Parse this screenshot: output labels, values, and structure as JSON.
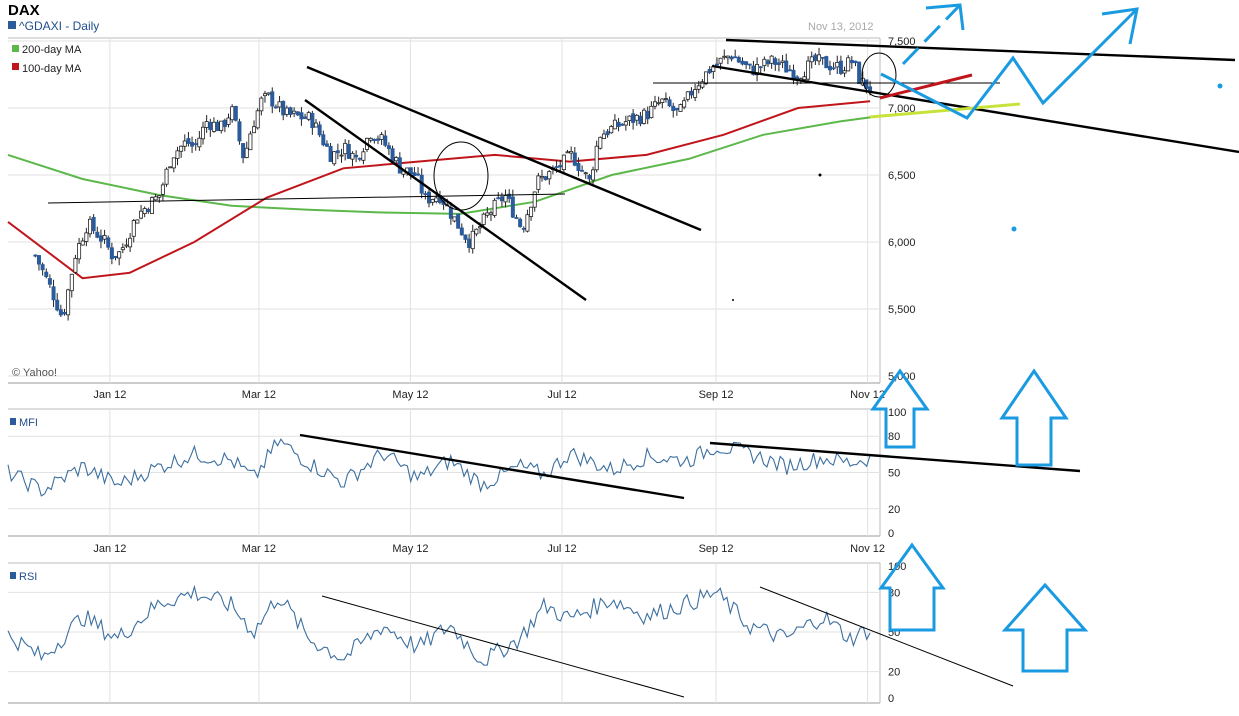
{
  "header": {
    "title": "DAX",
    "subtitle": "^GDAXI - Daily",
    "date": "Nov 13, 2012",
    "credit": "© Yahoo!"
  },
  "legend": [
    {
      "label": "200-day MA",
      "color": "#5cb84a"
    },
    {
      "label": "100-day MA",
      "color": "#c0161b"
    }
  ],
  "colors": {
    "candle_up": "#ffffff",
    "candle_down": "#2b5b9a",
    "ma200": "#5cb84a",
    "ma100": "#c0161b",
    "grid": "#e2e2e2",
    "annotation_black": "#000000",
    "annotation_blue": "#1a9ae0",
    "annotation_yellow": "#c9e23a",
    "osc_line": "#3c6f9f"
  },
  "chart_data": [
    {
      "type": "candlestick",
      "title": "^GDAXI - Daily",
      "xlabel": "",
      "ylabel": "",
      "x_ticks": [
        "Jan 12",
        "Mar 12",
        "May 12",
        "Jul 12",
        "Sep 12",
        "Nov 12"
      ],
      "y_ticks": [
        "5,000",
        "5,500",
        "6,000",
        "6,500",
        "7,000",
        "7,500"
      ],
      "ylim": [
        5000,
        7500
      ],
      "grid": true,
      "legend_position": "top-left",
      "price_path": [
        [
          "Dec 12",
          5900
        ],
        [
          "Dec 19",
          5620
        ],
        [
          "Dec 23",
          5430
        ],
        [
          "Dec 28",
          5900
        ],
        [
          "Jan 03",
          6140
        ],
        [
          "Jan 10",
          6000
        ],
        [
          "Jan 13",
          5900
        ],
        [
          "Jan 16",
          5920
        ],
        [
          "Jan 18",
          5990
        ],
        [
          "Jan 23",
          6200
        ],
        [
          "Feb 01",
          6350
        ],
        [
          "Feb 06",
          6650
        ],
        [
          "Feb 12",
          6750
        ],
        [
          "Feb 15",
          6700
        ],
        [
          "Feb 20",
          6900
        ],
        [
          "Feb 26",
          6850
        ],
        [
          "Mar 01",
          6990
        ],
        [
          "Mar 06",
          6620
        ],
        [
          "Mar 09",
          6850
        ],
        [
          "Mar 13",
          7050
        ],
        [
          "Mar 16",
          7080
        ],
        [
          "Mar 23",
          6950
        ],
        [
          "Apr 02",
          6920
        ],
        [
          "Apr 10",
          6650
        ],
        [
          "Apr 16",
          6700
        ],
        [
          "Apr 20",
          6620
        ],
        [
          "Apr 26",
          6820
        ],
        [
          "May 01",
          6750
        ],
        [
          "May 08",
          6550
        ],
        [
          "May 14",
          6500
        ],
        [
          "May 18",
          6320
        ],
        [
          "May 24",
          6350
        ],
        [
          "Jun 01",
          6100
        ],
        [
          "Jun 05",
          6000
        ],
        [
          "Jun 12",
          6200
        ],
        [
          "Jun 19",
          6350
        ],
        [
          "Jun 26",
          6100
        ],
        [
          "Jul 02",
          6450
        ],
        [
          "Jul 10",
          6550
        ],
        [
          "Jul 16",
          6650
        ],
        [
          "Jul 23",
          6450
        ],
        [
          "Jul 27",
          6800
        ],
        [
          "Aug 07",
          6900
        ],
        [
          "Aug 15",
          6950
        ],
        [
          "Aug 21",
          7050
        ],
        [
          "Aug 28",
          6950
        ],
        [
          "Sep 03",
          7150
        ],
        [
          "Sep 10",
          7300
        ],
        [
          "Sep 18",
          7400
        ],
        [
          "Sep 26",
          7280
        ],
        [
          "Oct 05",
          7350
        ],
        [
          "Oct 15",
          7250
        ],
        [
          "Oct 22",
          7350
        ],
        [
          "Nov 01",
          7300
        ],
        [
          "Nov 06",
          7350
        ],
        [
          "Nov 09",
          7200
        ],
        [
          "Nov 13",
          7150
        ]
      ],
      "series": [
        {
          "name": "200-day MA",
          "values": [
            [
              "Dec 01",
              6650
            ],
            [
              "Jan 01",
              6470
            ],
            [
              "Feb 01",
              6350
            ],
            [
              "Mar 01",
              6270
            ],
            [
              "Apr 01",
              6240
            ],
            [
              "May 01",
              6220
            ],
            [
              "Jun 01",
              6210
            ],
            [
              "Jul 01",
              6300
            ],
            [
              "Aug 01",
              6500
            ],
            [
              "Sep 01",
              6620
            ],
            [
              "Oct 01",
              6800
            ],
            [
              "Nov 01",
              6900
            ],
            [
              "Nov 13",
              6930
            ]
          ]
        },
        {
          "name": "100-day MA",
          "values": [
            [
              "Dec 01",
              6150
            ],
            [
              "Jan 01",
              5730
            ],
            [
              "Jan 20",
              5770
            ],
            [
              "Feb 15",
              6000
            ],
            [
              "Mar 15",
              6330
            ],
            [
              "Apr 15",
              6550
            ],
            [
              "May 15",
              6600
            ],
            [
              "Jun 15",
              6650
            ],
            [
              "Jul 15",
              6600
            ],
            [
              "Aug 15",
              6650
            ],
            [
              "Sep 15",
              6800
            ],
            [
              "Oct 15",
              7000
            ],
            [
              "Nov 13",
              7050
            ]
          ]
        }
      ]
    },
    {
      "type": "line",
      "title": "MFI",
      "x_ticks": [
        "Jan 12",
        "Mar 12",
        "May 12",
        "Jul 12",
        "Sep 12",
        "Nov 12"
      ],
      "y_ticks": [
        "0",
        "20",
        "50",
        "80",
        "100"
      ],
      "ylim": [
        0,
        100
      ],
      "series": [
        {
          "name": "MFI",
          "values": [
            [
              "Dec 01",
              50
            ],
            [
              "Dec 15",
              35
            ],
            [
              "Jan 01",
              55
            ],
            [
              "Jan 15",
              40
            ],
            [
              "Feb 01",
              55
            ],
            [
              "Feb 15",
              65
            ],
            [
              "Mar 01",
              60
            ],
            [
              "Mar 10",
              45
            ],
            [
              "Mar 20",
              76
            ],
            [
              "Apr 01",
              58
            ],
            [
              "Apr 15",
              42
            ],
            [
              "May 01",
              66
            ],
            [
              "May 15",
              45
            ],
            [
              "May 28",
              60
            ],
            [
              "Jun 10",
              40
            ],
            [
              "Jun 25",
              55
            ],
            [
              "Jul 05",
              48
            ],
            [
              "Jul 15",
              66
            ],
            [
              "Aug 01",
              52
            ],
            [
              "Aug 15",
              63
            ],
            [
              "Sep 01",
              60
            ],
            [
              "Sep 12",
              72
            ],
            [
              "Sep 25",
              66
            ],
            [
              "Oct 10",
              55
            ],
            [
              "Oct 25",
              62
            ],
            [
              "Nov 05",
              58
            ],
            [
              "Nov 13",
              62
            ]
          ]
        }
      ]
    },
    {
      "type": "line",
      "title": "RSI",
      "x_ticks": [
        "Jan 12",
        "Mar 12",
        "May 12",
        "Jul 12",
        "Sep 12",
        "Nov 12"
      ],
      "y_ticks": [
        "0",
        "20",
        "50",
        "80",
        "100"
      ],
      "ylim": [
        0,
        100
      ],
      "series": [
        {
          "name": "RSI",
          "values": [
            [
              "Dec 01",
              48
            ],
            [
              "Dec 15",
              30
            ],
            [
              "Jan 01",
              62
            ],
            [
              "Jan 15",
              45
            ],
            [
              "Feb 01",
              72
            ],
            [
              "Feb 15",
              80
            ],
            [
              "Mar 01",
              70
            ],
            [
              "Mar 10",
              50
            ],
            [
              "Mar 20",
              78
            ],
            [
              "Apr 01",
              45
            ],
            [
              "Apr 15",
              30
            ],
            [
              "May 01",
              55
            ],
            [
              "May 15",
              38
            ],
            [
              "May 28",
              55
            ],
            [
              "Jun 10",
              28
            ],
            [
              "Jun 25",
              45
            ],
            [
              "Jul 05",
              70
            ],
            [
              "Jul 15",
              60
            ],
            [
              "Aug 01",
              75
            ],
            [
              "Aug 15",
              62
            ],
            [
              "Sep 01",
              72
            ],
            [
              "Sep 12",
              80
            ],
            [
              "Sep 25",
              55
            ],
            [
              "Oct 10",
              45
            ],
            [
              "Oct 25",
              62
            ],
            [
              "Nov 05",
              45
            ],
            [
              "Nov 13",
              52
            ]
          ]
        }
      ]
    }
  ]
}
